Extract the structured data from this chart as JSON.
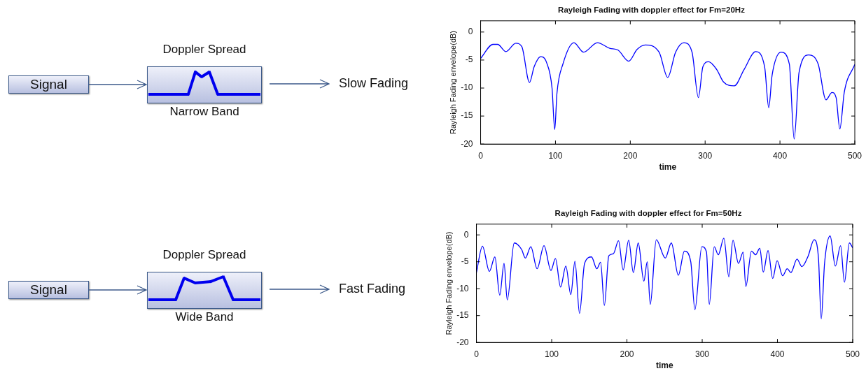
{
  "chart_data": [
    {
      "type": "other",
      "annotations": [
        "Signal",
        "Doppler Spread",
        "Narrow Band",
        "Slow Fading"
      ]
    },
    {
      "type": "line",
      "title": "Rayleigh Fading with doppler effect for Fm=20Hz",
      "xlabel": "time",
      "ylabel": "Rayleigh Fading envelope(dB)",
      "color": "#0000ff",
      "xlim": [
        0,
        500
      ],
      "ylim": [
        -20,
        2
      ],
      "xticks": [
        0,
        100,
        200,
        300,
        400,
        500
      ],
      "yticks": [
        -20,
        -15,
        -10,
        -5,
        0
      ],
      "x": [
        0,
        16.5,
        22.7,
        33.7,
        47,
        55,
        65.3,
        71.5,
        80,
        88,
        95.4,
        99,
        102,
        110,
        124.7,
        137.5,
        156,
        172.4,
        183.4,
        198,
        209,
        220,
        238.5,
        250,
        260.5,
        271.5,
        282.5,
        291,
        297,
        304.5,
        315.5,
        324.5,
        339,
        352,
        367.5,
        379.5,
        385,
        389.5,
        401.5,
        412.5,
        419,
        425.5,
        438.4,
        451,
        461.5,
        469.5,
        475,
        480,
        486,
        500
      ],
      "values": [
        -4.7,
        -2.2,
        -2.2,
        -3.5,
        -2.0,
        -2.6,
        -9.0,
        -6.2,
        -4.4,
        -5.4,
        -10,
        -17.4,
        -10.9,
        -5.7,
        -1.9,
        -3.6,
        -1.9,
        -2.9,
        -3.2,
        -5.2,
        -3.1,
        -2.3,
        -3.6,
        -8.1,
        -3.6,
        -1.9,
        -3.6,
        -11.7,
        -6.2,
        -5.3,
        -6.7,
        -8.9,
        -9.6,
        -6.7,
        -3.5,
        -6.2,
        -13.5,
        -7.7,
        -3.6,
        -5.7,
        -19.1,
        -7.2,
        -4.1,
        -5.7,
        -12.1,
        -10.8,
        -11.7,
        -17.3,
        -10.7,
        -5.8
      ]
    },
    {
      "type": "other",
      "annotations": [
        "Signal",
        "Doppler Spread",
        "Wide Band",
        "Fast Fading"
      ]
    },
    {
      "type": "line",
      "title": "Rayleigh Fading with doppler effect for Fm=50Hz",
      "xlabel": "time",
      "ylabel": "Rayleigh Fading envelope(dB)",
      "color": "#0000ff",
      "xlim": [
        0,
        500
      ],
      "ylim": [
        -20,
        2
      ],
      "xticks": [
        0,
        100,
        200,
        300,
        400,
        500
      ],
      "yticks": [
        -20,
        -15,
        -10,
        -5,
        0
      ],
      "x": [
        0,
        8,
        17.2,
        24.5,
        31,
        36.7,
        41,
        50.2,
        60,
        65,
        72.3,
        80.6,
        89.8,
        99,
        105,
        111.8,
        118.8,
        125.4,
        130.9,
        137,
        143.7,
        152.9,
        160,
        165,
        170,
        175.9,
        182,
        188.8,
        195,
        202.3,
        208.5,
        215,
        222.5,
        227,
        231,
        239,
        251,
        259,
        268.3,
        276.4,
        284.8,
        290.3,
        299.5,
        305.7,
        309.4,
        316,
        321.4,
        328.8,
        335.4,
        340.9,
        348.2,
        354.4,
        358,
        365.5,
        371,
        376.5,
        381.2,
        387.5,
        393.7,
        399.6,
        406.9,
        413,
        417.9,
        426,
        432.5,
        440.6,
        448.7,
        454.5,
        458.2,
        462.6,
        470,
        477,
        483.9,
        489,
        495.6,
        500
      ],
      "values": [
        -7.0,
        -2.1,
        -6.8,
        -4.1,
        -11.2,
        -5.3,
        -12.1,
        -1.5,
        -2.7,
        -4.3,
        -2.2,
        -6.3,
        -2.0,
        -6.6,
        -4.4,
        -9.7,
        -5.8,
        -11.1,
        -4.9,
        -14.6,
        -5.3,
        -4.1,
        -6.3,
        -5.1,
        -13.1,
        -3.9,
        -3.5,
        -1.1,
        -6.5,
        -1.0,
        -7.0,
        -1.5,
        -8.6,
        -5.0,
        -12.9,
        -0.9,
        -4.3,
        -1.5,
        -7.5,
        -3.0,
        -5.0,
        -13.9,
        -2.2,
        -3.2,
        -12.9,
        -2.2,
        -3.7,
        -0.6,
        -7.8,
        -1.0,
        -5.3,
        -3.2,
        -9.6,
        -3.0,
        -3.7,
        -2.5,
        -6.9,
        -2.9,
        -8.1,
        -4.8,
        -7.6,
        -6.3,
        -7.0,
        -4.5,
        -5.9,
        -4.0,
        -0.9,
        -4.3,
        -15.6,
        -5.3,
        -0.2,
        -5.8,
        -2.0,
        -8.8,
        -1.5,
        -2.4
      ]
    }
  ]
}
